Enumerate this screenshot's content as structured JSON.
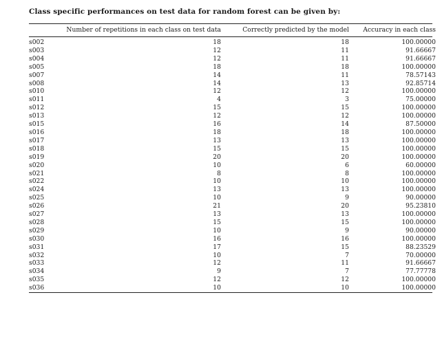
{
  "title": "Class specific performances on test data for random forest can be given by:",
  "table": {
    "headers": {
      "id": "",
      "repetitions": "Number of repetitions in each class on test data",
      "predicted": "Correctly predicted by the model",
      "accuracy": "Accuracy in each class"
    },
    "rows": [
      {
        "id": "s002",
        "rep": "18",
        "pred": "18",
        "acc": "100.00000"
      },
      {
        "id": "s003",
        "rep": "12",
        "pred": "11",
        "acc": "91.66667"
      },
      {
        "id": "s004",
        "rep": "12",
        "pred": "11",
        "acc": "91.66667"
      },
      {
        "id": "s005",
        "rep": "18",
        "pred": "18",
        "acc": "100.00000"
      },
      {
        "id": "s007",
        "rep": "14",
        "pred": "11",
        "acc": "78.57143"
      },
      {
        "id": "s008",
        "rep": "14",
        "pred": "13",
        "acc": "92.85714"
      },
      {
        "id": "s010",
        "rep": "12",
        "pred": "12",
        "acc": "100.00000"
      },
      {
        "id": "s011",
        "rep": "4",
        "pred": "3",
        "acc": "75.00000"
      },
      {
        "id": "s012",
        "rep": "15",
        "pred": "15",
        "acc": "100.00000"
      },
      {
        "id": "s013",
        "rep": "12",
        "pred": "12",
        "acc": "100.00000"
      },
      {
        "id": "s015",
        "rep": "16",
        "pred": "14",
        "acc": "87.50000"
      },
      {
        "id": "s016",
        "rep": "18",
        "pred": "18",
        "acc": "100.00000"
      },
      {
        "id": "s017",
        "rep": "13",
        "pred": "13",
        "acc": "100.00000"
      },
      {
        "id": "s018",
        "rep": "15",
        "pred": "15",
        "acc": "100.00000"
      },
      {
        "id": "s019",
        "rep": "20",
        "pred": "20",
        "acc": "100.00000"
      },
      {
        "id": "s020",
        "rep": "10",
        "pred": "6",
        "acc": "60.00000"
      },
      {
        "id": "s021",
        "rep": "8",
        "pred": "8",
        "acc": "100.00000"
      },
      {
        "id": "s022",
        "rep": "10",
        "pred": "10",
        "acc": "100.00000"
      },
      {
        "id": "s024",
        "rep": "13",
        "pred": "13",
        "acc": "100.00000"
      },
      {
        "id": "s025",
        "rep": "10",
        "pred": "9",
        "acc": "90.00000"
      },
      {
        "id": "s026",
        "rep": "21",
        "pred": "20",
        "acc": "95.23810"
      },
      {
        "id": "s027",
        "rep": "13",
        "pred": "13",
        "acc": "100.00000"
      },
      {
        "id": "s028",
        "rep": "15",
        "pred": "15",
        "acc": "100.00000"
      },
      {
        "id": "s029",
        "rep": "10",
        "pred": "9",
        "acc": "90.00000"
      },
      {
        "id": "s030",
        "rep": "16",
        "pred": "16",
        "acc": "100.00000"
      },
      {
        "id": "s031",
        "rep": "17",
        "pred": "15",
        "acc": "88.23529"
      },
      {
        "id": "s032",
        "rep": "10",
        "pred": "7",
        "acc": "70.00000"
      },
      {
        "id": "s033",
        "rep": "12",
        "pred": "11",
        "acc": "91.66667"
      },
      {
        "id": "s034",
        "rep": "9",
        "pred": "7",
        "acc": "77.77778"
      },
      {
        "id": "s035",
        "rep": "12",
        "pred": "12",
        "acc": "100.00000"
      },
      {
        "id": "s036",
        "rep": "10",
        "pred": "10",
        "acc": "100.00000"
      }
    ]
  }
}
